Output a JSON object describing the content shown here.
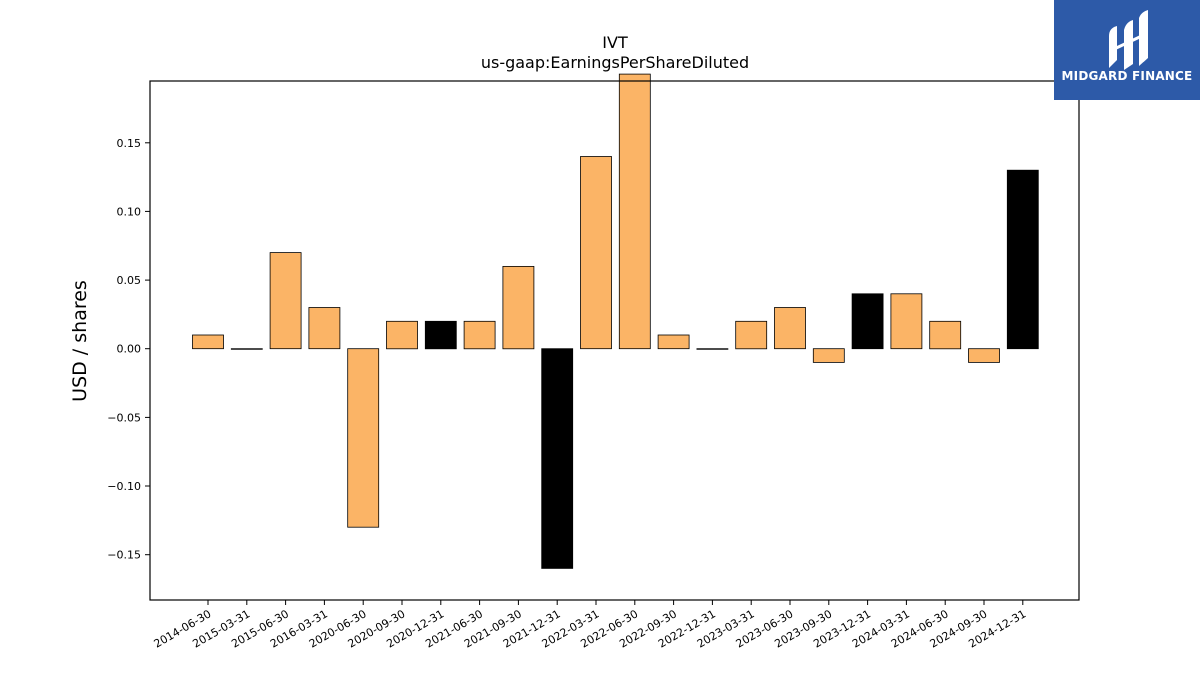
{
  "chart_data": {
    "type": "bar",
    "title": "IVT",
    "subtitle": "us-gaap:EarningsPerShareDiluted",
    "xlabel": "",
    "ylabel": "USD / shares",
    "ylim": [
      -0.183,
      0.195
    ],
    "yticks": [
      -0.15,
      -0.1,
      -0.05,
      0.0,
      0.05,
      0.1,
      0.15
    ],
    "ytick_labels": [
      "−0.15",
      "−0.10",
      "−0.05",
      "0.00",
      "0.05",
      "0.10",
      "0.15"
    ],
    "grid": false,
    "categories": [
      "2014-06-30",
      "2015-03-31",
      "2015-06-30",
      "2016-03-31",
      "2020-06-30",
      "2020-09-30",
      "2020-12-31",
      "2021-06-30",
      "2021-09-30",
      "2021-12-31",
      "2022-03-31",
      "2022-06-30",
      "2022-09-30",
      "2022-12-31",
      "2023-03-31",
      "2023-06-30",
      "2023-09-30",
      "2023-12-31",
      "2024-03-31",
      "2024-06-30",
      "2024-09-30",
      "2024-12-31"
    ],
    "values": [
      0.01,
      0.0,
      0.07,
      0.03,
      -0.13,
      0.02,
      0.02,
      0.02,
      0.06,
      -0.16,
      0.14,
      0.2,
      0.01,
      0.0,
      0.02,
      0.03,
      -0.01,
      0.04,
      0.04,
      0.02,
      -0.01,
      0.13
    ],
    "bar_colors": [
      "#fbb466",
      "#fbb466",
      "#fbb466",
      "#fbb466",
      "#fbb466",
      "#fbb466",
      "#000000",
      "#fbb466",
      "#fbb466",
      "#000000",
      "#fbb466",
      "#fbb466",
      "#fbb466",
      "#fbb466",
      "#fbb466",
      "#fbb466",
      "#fbb466",
      "#000000",
      "#fbb466",
      "#fbb466",
      "#fbb466",
      "#000000"
    ]
  },
  "logo": {
    "text": "MIDGARD FINANCE",
    "background": "#2d5aa8"
  }
}
